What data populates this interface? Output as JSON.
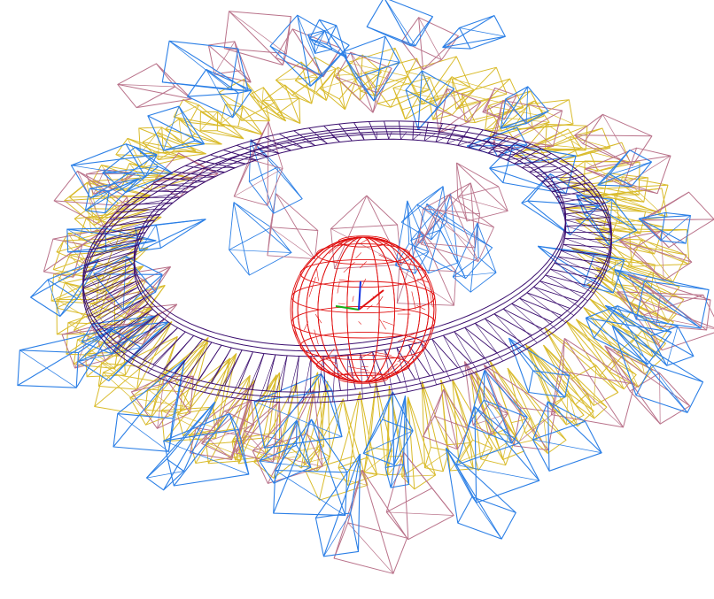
{
  "scene": {
    "background": "#ffffff",
    "palette": {
      "yellow_frames": "#d9bb2b",
      "blue_frames": "#2b7fe6",
      "mauve_frames": "#b9728a",
      "inner_ring": "#3a0d6e",
      "globe": "#e01010",
      "axis_x": "#e01010",
      "axis_y": "#18b018",
      "axis_z": "#1030e0"
    },
    "ring": {
      "yellow_count": 90,
      "blue_count": 46,
      "mauve_count": 34,
      "inner_struts": 110
    },
    "globe": {
      "latitudes": 9,
      "meridians": 14
    }
  }
}
